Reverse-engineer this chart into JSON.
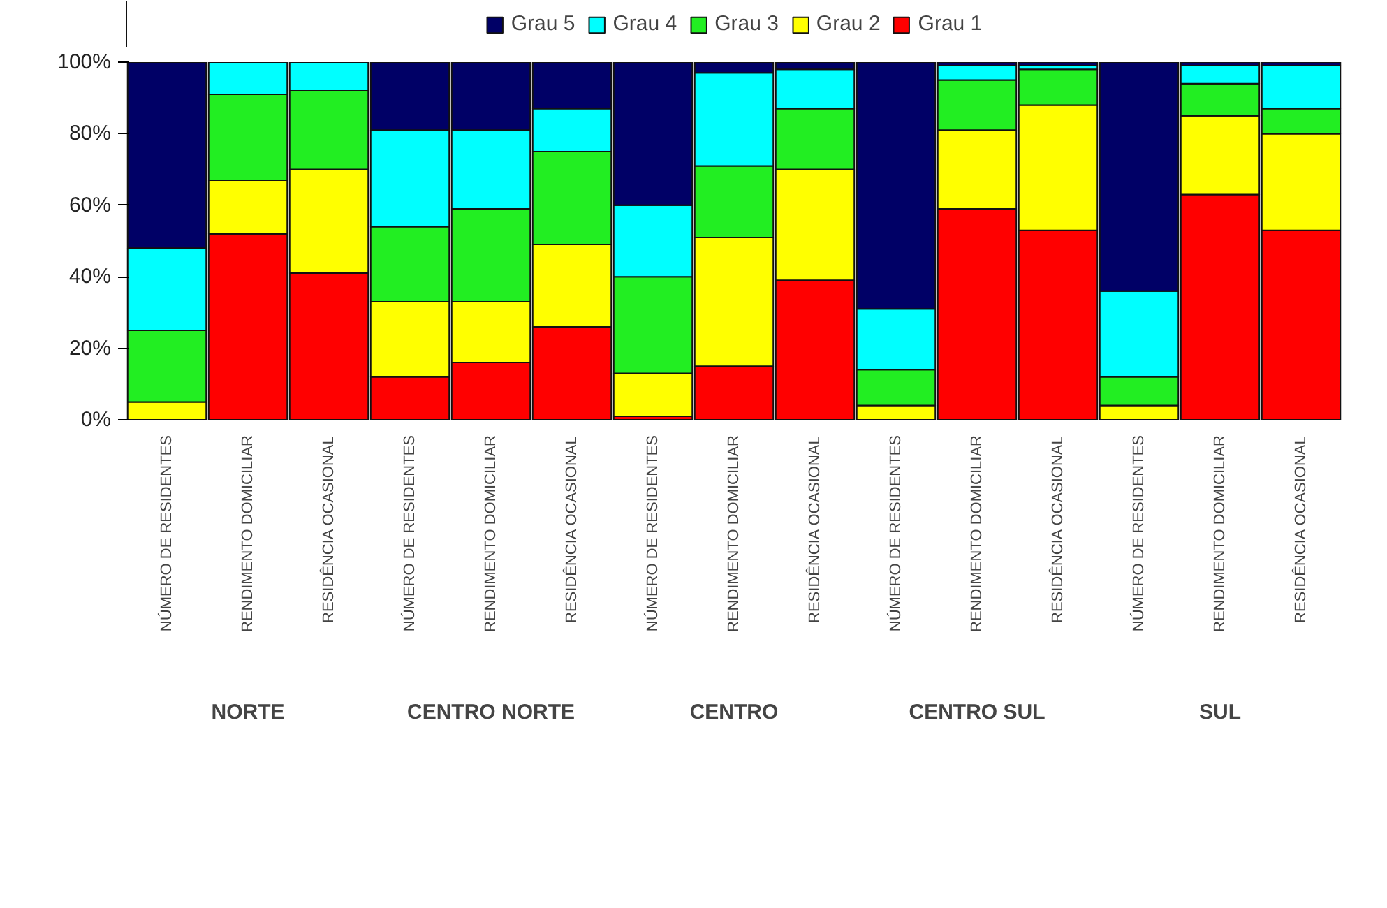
{
  "chart_data": {
    "type": "bar",
    "stacked": true,
    "categories": [
      "NÚMERO DE RESIDENTES",
      "RENDIMENTO DOMICILIAR",
      "RESIDÊNCIA OCASIONAL",
      "NÚMERO DE RESIDENTES",
      "RENDIMENTO DOMICILIAR",
      "RESIDÊNCIA OCASIONAL",
      "NÚMERO DE RESIDENTES",
      "RENDIMENTO DOMICILIAR",
      "RESIDÊNCIA OCASIONAL",
      "NÚMERO DE RESIDENTES",
      "RENDIMENTO DOMICILIAR",
      "RESIDÊNCIA OCASIONAL",
      "NÚMERO DE RESIDENTES",
      "RENDIMENTO DOMICILIAR",
      "RESIDÊNCIA OCASIONAL"
    ],
    "series": [
      {
        "name": "Grau 1",
        "color": "#ff0000",
        "values": [
          0,
          52,
          41,
          12,
          16,
          26,
          1,
          15,
          39,
          0,
          59,
          53,
          0,
          63,
          53
        ]
      },
      {
        "name": "Grau 2",
        "color": "#ffff00",
        "values": [
          5,
          15,
          29,
          21,
          17,
          23,
          12,
          36,
          31,
          4,
          22,
          35,
          4,
          22,
          27
        ]
      },
      {
        "name": "Grau 3",
        "color": "#22ee22",
        "values": [
          20,
          24,
          22,
          21,
          26,
          26,
          27,
          20,
          17,
          10,
          14,
          10,
          8,
          9,
          7
        ]
      },
      {
        "name": "Grau 4",
        "color": "#00ffff",
        "values": [
          23,
          9,
          8,
          27,
          22,
          12,
          20,
          26,
          11,
          17,
          4,
          1,
          24,
          5,
          12
        ]
      },
      {
        "name": "Grau 5",
        "color": "#000066",
        "values": [
          52,
          0,
          0,
          19,
          19,
          13,
          40,
          3,
          2,
          69,
          1,
          1,
          64,
          1,
          1
        ]
      }
    ],
    "ylim": [
      0,
      100
    ],
    "yticks": [
      {
        "value": 0,
        "label": "0%"
      },
      {
        "value": 20,
        "label": "20%"
      },
      {
        "value": 40,
        "label": "40%"
      },
      {
        "value": 60,
        "label": "60%"
      },
      {
        "value": 80,
        "label": "80%"
      },
      {
        "value": 100,
        "label": "100%"
      }
    ],
    "grid": false,
    "legend": "top",
    "annotations": [
      "NORTE",
      "CENTRO NORTE",
      "CENTRO",
      "CENTRO SUL",
      "SUL"
    ]
  }
}
